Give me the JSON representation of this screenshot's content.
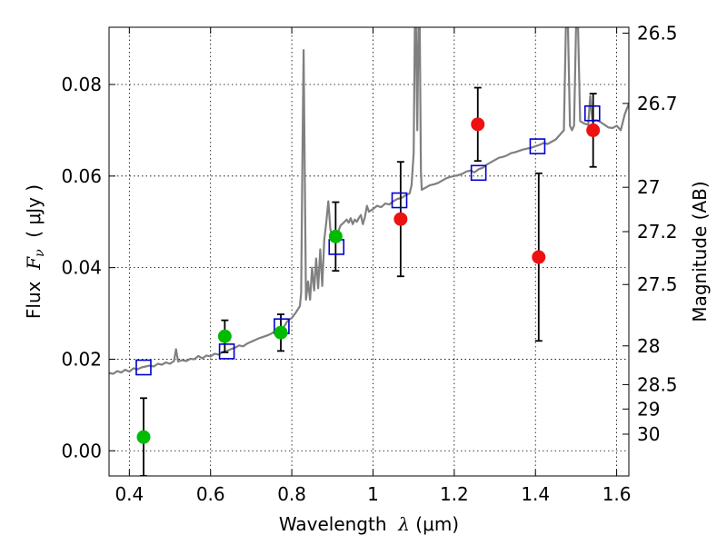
{
  "chart_data": {
    "type": "scatter",
    "title": "",
    "xlabel": "Wavelength",
    "xlabel_symbol": "λ",
    "xlabel_unit": "(μm)",
    "ylabel": "Flux",
    "ylabel_symbol": "F",
    "ylabel_subscript": "ν",
    "ylabel_unit": "( μJy )",
    "y2label": "Magnitude (AB)",
    "xlim": [
      0.35,
      1.63
    ],
    "ylim": [
      -0.0055,
      0.0925
    ],
    "grid": true,
    "x_ticks": [
      {
        "v": 0.4,
        "label": "0.4"
      },
      {
        "v": 0.6,
        "label": "0.6"
      },
      {
        "v": 0.8,
        "label": "0.8"
      },
      {
        "v": 1.0,
        "label": "1"
      },
      {
        "v": 1.2,
        "label": "1.2"
      },
      {
        "v": 1.4,
        "label": "1.4"
      },
      {
        "v": 1.6,
        "label": "1.6"
      }
    ],
    "y_ticks": [
      {
        "v": 0.0,
        "label": "0.00"
      },
      {
        "v": 0.02,
        "label": "0.02"
      },
      {
        "v": 0.04,
        "label": "0.04"
      },
      {
        "v": 0.06,
        "label": "0.06"
      },
      {
        "v": 0.08,
        "label": "0.08"
      }
    ],
    "magnitude_ticks": [
      {
        "v": 26.5,
        "label": "26.5"
      },
      {
        "v": 26.7,
        "label": "26.7"
      },
      {
        "v": 27.0,
        "label": "27"
      },
      {
        "v": 27.2,
        "label": "27.2"
      },
      {
        "v": 27.5,
        "label": "27.5"
      },
      {
        "v": 28.0,
        "label": "28"
      },
      {
        "v": 28.5,
        "label": "28.5"
      },
      {
        "v": 29.0,
        "label": "29"
      },
      {
        "v": 30.0,
        "label": "30"
      }
    ],
    "colors": {
      "model": "#808080",
      "green": "#00bb00",
      "red": "#ee1111",
      "square": "#0000cc",
      "errorbar": "#000000"
    },
    "model_spectrum": [
      [
        0.35,
        0.017
      ],
      [
        0.36,
        0.0168
      ],
      [
        0.37,
        0.0174
      ],
      [
        0.38,
        0.0171
      ],
      [
        0.39,
        0.0177
      ],
      [
        0.4,
        0.0173
      ],
      [
        0.41,
        0.018
      ],
      [
        0.42,
        0.0178
      ],
      [
        0.43,
        0.0182
      ],
      [
        0.44,
        0.0184
      ],
      [
        0.45,
        0.0186
      ],
      [
        0.46,
        0.0184
      ],
      [
        0.47,
        0.019
      ],
      [
        0.48,
        0.0188
      ],
      [
        0.49,
        0.0193
      ],
      [
        0.5,
        0.019
      ],
      [
        0.51,
        0.0196
      ],
      [
        0.515,
        0.0222
      ],
      [
        0.52,
        0.0195
      ],
      [
        0.53,
        0.0198
      ],
      [
        0.54,
        0.0196
      ],
      [
        0.55,
        0.0201
      ],
      [
        0.56,
        0.02
      ],
      [
        0.57,
        0.0207
      ],
      [
        0.58,
        0.0202
      ],
      [
        0.59,
        0.0208
      ],
      [
        0.6,
        0.0206
      ],
      [
        0.61,
        0.0212
      ],
      [
        0.62,
        0.021
      ],
      [
        0.63,
        0.0216
      ],
      [
        0.64,
        0.0218
      ],
      [
        0.65,
        0.0222
      ],
      [
        0.66,
        0.0225
      ],
      [
        0.67,
        0.023
      ],
      [
        0.68,
        0.0228
      ],
      [
        0.69,
        0.0234
      ],
      [
        0.7,
        0.0238
      ],
      [
        0.71,
        0.0242
      ],
      [
        0.72,
        0.0246
      ],
      [
        0.73,
        0.0249
      ],
      [
        0.74,
        0.0252
      ],
      [
        0.75,
        0.0256
      ],
      [
        0.76,
        0.0262
      ],
      [
        0.77,
        0.0266
      ],
      [
        0.78,
        0.027
      ],
      [
        0.79,
        0.0284
      ],
      [
        0.8,
        0.029
      ],
      [
        0.81,
        0.0302
      ],
      [
        0.82,
        0.0316
      ],
      [
        0.823,
        0.0345
      ],
      [
        0.826,
        0.062
      ],
      [
        0.829,
        0.0875
      ],
      [
        0.832,
        0.06
      ],
      [
        0.835,
        0.033
      ],
      [
        0.84,
        0.037
      ],
      [
        0.845,
        0.033
      ],
      [
        0.85,
        0.04
      ],
      [
        0.855,
        0.035
      ],
      [
        0.86,
        0.042
      ],
      [
        0.865,
        0.0355
      ],
      [
        0.87,
        0.044
      ],
      [
        0.875,
        0.036
      ],
      [
        0.88,
        0.046
      ],
      [
        0.885,
        0.05
      ],
      [
        0.89,
        0.0545
      ],
      [
        0.895,
        0.0485
      ],
      [
        0.9,
        0.0462
      ],
      [
        0.905,
        0.0475
      ],
      [
        0.91,
        0.0468
      ],
      [
        0.92,
        0.0492
      ],
      [
        0.93,
        0.05
      ],
      [
        0.935,
        0.0505
      ],
      [
        0.94,
        0.0498
      ],
      [
        0.945,
        0.0508
      ],
      [
        0.95,
        0.0495
      ],
      [
        0.955,
        0.0505
      ],
      [
        0.96,
        0.05
      ],
      [
        0.965,
        0.0508
      ],
      [
        0.97,
        0.0515
      ],
      [
        0.975,
        0.0495
      ],
      [
        0.98,
        0.051
      ],
      [
        0.985,
        0.0535
      ],
      [
        0.99,
        0.0522
      ],
      [
        1.0,
        0.0528
      ],
      [
        1.01,
        0.0535
      ],
      [
        1.02,
        0.0532
      ],
      [
        1.03,
        0.054
      ],
      [
        1.04,
        0.0538
      ],
      [
        1.05,
        0.0545
      ],
      [
        1.06,
        0.055
      ],
      [
        1.07,
        0.0552
      ],
      [
        1.08,
        0.0558
      ],
      [
        1.09,
        0.0562
      ],
      [
        1.095,
        0.058
      ],
      [
        1.1,
        0.065
      ],
      [
        1.103,
        0.0925
      ],
      [
        1.106,
        0.0925
      ],
      [
        1.109,
        0.07
      ],
      [
        1.112,
        0.0925
      ],
      [
        1.115,
        0.0925
      ],
      [
        1.118,
        0.061
      ],
      [
        1.12,
        0.057
      ],
      [
        1.13,
        0.0575
      ],
      [
        1.14,
        0.058
      ],
      [
        1.15,
        0.0582
      ],
      [
        1.16,
        0.0585
      ],
      [
        1.17,
        0.059
      ],
      [
        1.18,
        0.0595
      ],
      [
        1.19,
        0.0598
      ],
      [
        1.2,
        0.06
      ],
      [
        1.21,
        0.0602
      ],
      [
        1.22,
        0.0605
      ],
      [
        1.23,
        0.061
      ],
      [
        1.24,
        0.0612
      ],
      [
        1.25,
        0.0608
      ],
      [
        1.26,
        0.0615
      ],
      [
        1.27,
        0.0618
      ],
      [
        1.28,
        0.0625
      ],
      [
        1.29,
        0.063
      ],
      [
        1.3,
        0.0635
      ],
      [
        1.31,
        0.064
      ],
      [
        1.32,
        0.0642
      ],
      [
        1.33,
        0.0645
      ],
      [
        1.34,
        0.065
      ],
      [
        1.35,
        0.0652
      ],
      [
        1.36,
        0.0655
      ],
      [
        1.37,
        0.0658
      ],
      [
        1.38,
        0.066
      ],
      [
        1.39,
        0.0662
      ],
      [
        1.4,
        0.0665
      ],
      [
        1.41,
        0.0668
      ],
      [
        1.42,
        0.0672
      ],
      [
        1.43,
        0.067
      ],
      [
        1.44,
        0.0675
      ],
      [
        1.45,
        0.068
      ],
      [
        1.46,
        0.069
      ],
      [
        1.47,
        0.07
      ],
      [
        1.475,
        0.0925
      ],
      [
        1.48,
        0.0925
      ],
      [
        1.485,
        0.071
      ],
      [
        1.49,
        0.07
      ],
      [
        1.495,
        0.071
      ],
      [
        1.5,
        0.0925
      ],
      [
        1.505,
        0.0925
      ],
      [
        1.51,
        0.072
      ],
      [
        1.52,
        0.0715
      ],
      [
        1.53,
        0.0712
      ],
      [
        1.535,
        0.0775
      ],
      [
        1.54,
        0.072
      ],
      [
        1.55,
        0.0722
      ],
      [
        1.56,
        0.0718
      ],
      [
        1.57,
        0.0712
      ],
      [
        1.58,
        0.0706
      ],
      [
        1.59,
        0.0705
      ],
      [
        1.6,
        0.071
      ],
      [
        1.61,
        0.07
      ],
      [
        1.62,
        0.0735
      ],
      [
        1.63,
        0.0758
      ]
    ],
    "model_points": [
      {
        "x": 0.435,
        "y": 0.0182
      },
      {
        "x": 0.64,
        "y": 0.0217
      },
      {
        "x": 0.775,
        "y": 0.0272
      },
      {
        "x": 0.91,
        "y": 0.0445
      },
      {
        "x": 1.065,
        "y": 0.0547
      },
      {
        "x": 1.26,
        "y": 0.0607
      },
      {
        "x": 1.405,
        "y": 0.0665
      },
      {
        "x": 1.54,
        "y": 0.0737
      }
    ],
    "observed_green": [
      {
        "x": 0.435,
        "y": 0.003,
        "err_lo": 0.0085,
        "err_hi": 0.0085
      },
      {
        "x": 0.635,
        "y": 0.025,
        "err_lo": 0.0035,
        "err_hi": 0.0035
      },
      {
        "x": 0.773,
        "y": 0.0258,
        "err_lo": 0.004,
        "err_hi": 0.004
      },
      {
        "x": 0.908,
        "y": 0.0468,
        "err_lo": 0.0075,
        "err_hi": 0.0075
      }
    ],
    "observed_red": [
      {
        "x": 1.068,
        "y": 0.0506,
        "err_lo": 0.0125,
        "err_hi": 0.0125
      },
      {
        "x": 1.258,
        "y": 0.0713,
        "err_lo": 0.008,
        "err_hi": 0.008
      },
      {
        "x": 1.408,
        "y": 0.0423,
        "err_lo": 0.0183,
        "err_hi": 0.0183
      },
      {
        "x": 1.542,
        "y": 0.07,
        "err_lo": 0.008,
        "err_hi": 0.008
      }
    ]
  }
}
